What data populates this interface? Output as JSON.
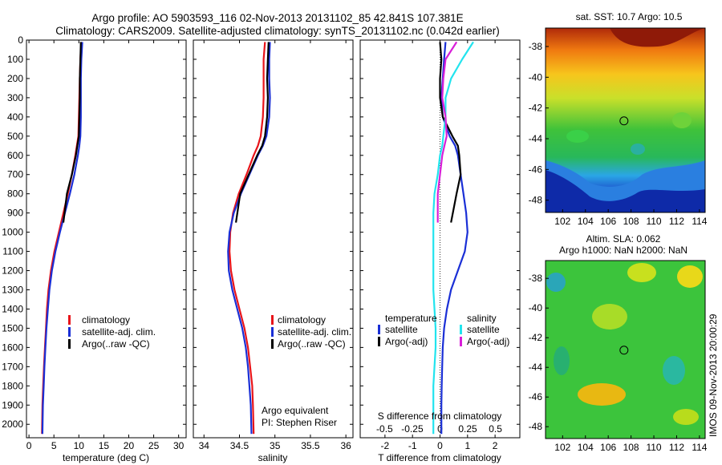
{
  "figure": {
    "title_line1": "Argo profile: AO 5903593_116 02-Nov-2013 20131102_85 42.841S 107.381E",
    "title_line2": "Climatology: CARS2009. Satellite-adjusted climatology: synTS_20131102.nc (0.042d earlier)",
    "timestamp": "IMOS 09-Nov-2013 20:00:29"
  },
  "colors": {
    "climatology": "#e8141a",
    "satellite": "#1a2fd6",
    "argo": "#000000",
    "salinity_satellite": "#22e4ee",
    "salinity_argo": "#d81ed8"
  },
  "chart_data": [
    {
      "type": "line",
      "id": "temperature",
      "xlabel": "temperature (deg C)",
      "xlim": [
        -0.5,
        31.5
      ],
      "xticks": [
        0,
        5,
        10,
        15,
        20,
        25,
        30
      ],
      "ylim": [
        0,
        2070
      ],
      "yticks": [
        0,
        100,
        200,
        300,
        400,
        500,
        600,
        700,
        800,
        900,
        1000,
        1100,
        1200,
        1300,
        1400,
        1500,
        1600,
        1700,
        1800,
        1900,
        2000
      ],
      "legend": [
        "climatology",
        "satellite-adj. clim.",
        "Argo(..raw -QC)"
      ],
      "series": [
        {
          "name": "climatology",
          "color": "#e8141a",
          "x": [
            10.5,
            10.3,
            10.2,
            10.1,
            10.0,
            9.9,
            9.6,
            9.3,
            8.6,
            7.8,
            6.9,
            6.0,
            5.1,
            4.4,
            3.9,
            3.6,
            3.4,
            3.2,
            3.0,
            2.85,
            2.7,
            2.6
          ],
          "y": [
            10,
            100,
            200,
            300,
            400,
            500,
            550,
            600,
            700,
            800,
            900,
            1000,
            1100,
            1200,
            1300,
            1400,
            1500,
            1600,
            1700,
            1800,
            1900,
            2050
          ]
        },
        {
          "name": "satellite-adj. clim.",
          "color": "#1a2fd6",
          "x": [
            10.7,
            10.5,
            10.4,
            10.4,
            10.4,
            10.3,
            10.1,
            9.8,
            9.1,
            8.2,
            7.2,
            6.2,
            5.3,
            4.6,
            4.1,
            3.8,
            3.5,
            3.3,
            3.1,
            2.95,
            2.8,
            2.7
          ],
          "y": [
            10,
            100,
            200,
            300,
            400,
            500,
            550,
            600,
            700,
            800,
            900,
            1000,
            1100,
            1200,
            1300,
            1400,
            1500,
            1600,
            1700,
            1800,
            1900,
            2050
          ]
        },
        {
          "name": "Argo(..raw -QC)",
          "color": "#000000",
          "x": [
            10.4,
            10.3,
            10.2,
            10.2,
            10.1,
            10.0,
            9.7,
            9.4,
            8.6,
            7.6,
            6.9
          ],
          "y": [
            10,
            100,
            200,
            300,
            400,
            500,
            550,
            600,
            700,
            800,
            950
          ]
        }
      ]
    },
    {
      "type": "line",
      "id": "salinity",
      "xlabel": "salinity",
      "xlim": [
        33.85,
        36.1
      ],
      "xticks": [
        34,
        34.5,
        35,
        35.5,
        36
      ],
      "ylim": [
        0,
        2070
      ],
      "legend": [
        "climatology",
        "satellite-adj. clim.",
        "Argo(..raw -QC)"
      ],
      "note_line1": "Argo equivalent",
      "note_line2": "PI: Stephen Riser",
      "series": [
        {
          "name": "climatology",
          "color": "#e8141a",
          "x": [
            34.86,
            34.84,
            34.84,
            34.84,
            34.83,
            34.8,
            34.76,
            34.7,
            34.6,
            34.49,
            34.41,
            34.37,
            34.36,
            34.38,
            34.43,
            34.5,
            34.57,
            34.62,
            34.65,
            34.68,
            34.69,
            34.7
          ],
          "y": [
            10,
            100,
            200,
            300,
            400,
            500,
            550,
            600,
            700,
            800,
            900,
            1000,
            1100,
            1200,
            1300,
            1400,
            1500,
            1600,
            1700,
            1800,
            1900,
            2050
          ]
        },
        {
          "name": "satellite-adj. clim.",
          "color": "#1a2fd6",
          "x": [
            34.93,
            34.92,
            34.92,
            34.93,
            34.92,
            34.88,
            34.83,
            34.76,
            34.64,
            34.52,
            34.42,
            34.36,
            34.34,
            34.35,
            34.4,
            34.47,
            34.54,
            34.59,
            34.62,
            34.64,
            34.66,
            34.67
          ],
          "y": [
            10,
            100,
            200,
            300,
            400,
            500,
            550,
            600,
            700,
            800,
            900,
            1000,
            1100,
            1200,
            1300,
            1400,
            1500,
            1600,
            1700,
            1800,
            1900,
            2050
          ]
        },
        {
          "name": "Argo(..raw -QC)",
          "color": "#000000",
          "x": [
            34.91,
            34.9,
            34.89,
            34.9,
            34.89,
            34.86,
            34.82,
            34.75,
            34.63,
            34.51,
            34.45
          ],
          "y": [
            10,
            100,
            200,
            300,
            400,
            500,
            550,
            600,
            700,
            800,
            950
          ]
        }
      ]
    },
    {
      "type": "line",
      "id": "difference",
      "xlabel": "T difference from climatology",
      "xlabel_top": "S difference from climatology",
      "xlim": [
        -2.9,
        2.9
      ],
      "xticks": [
        -2,
        -1,
        0,
        1,
        2
      ],
      "xticklabels": [
        "-2",
        "-1",
        "0",
        "1",
        "2"
      ],
      "xticks_top": [
        -0.5,
        -0.25,
        0,
        0.25,
        0.5
      ],
      "ylim": [
        0,
        2070
      ],
      "legend_temperature": {
        "heading": "temperature",
        "items": [
          "satellite",
          "Argo(-adj)"
        ]
      },
      "legend_salinity": {
        "heading": "salinity",
        "items": [
          "satellite",
          "Argo(-adj)"
        ]
      },
      "series": [
        {
          "name": "temperature satellite",
          "color": "#1a2fd6",
          "x": [
            0.2,
            0.15,
            0.1,
            0.05,
            0.1,
            0.35,
            0.55,
            0.65,
            0.75,
            0.85,
            0.95,
            1.0,
            0.9,
            0.65,
            0.4,
            0.25,
            0.15,
            0.1,
            0.08,
            0.06,
            0.05,
            0.05
          ],
          "y": [
            10,
            100,
            200,
            300,
            400,
            500,
            550,
            600,
            700,
            800,
            900,
            1000,
            1100,
            1200,
            1300,
            1400,
            1500,
            1600,
            1700,
            1800,
            1900,
            2050
          ]
        },
        {
          "name": "temperature Argo(-adj)",
          "color": "#000000",
          "x": [
            0.0,
            0.05,
            0.0,
            0.0,
            0.1,
            0.45,
            0.65,
            0.7,
            0.75,
            0.6,
            0.4
          ],
          "y": [
            10,
            100,
            200,
            300,
            400,
            500,
            550,
            600,
            700,
            800,
            950
          ]
        },
        {
          "name": "salinity satellite",
          "color": "#22e4ee",
          "x": [
            0.3,
            0.2,
            0.1,
            0.05,
            0.05,
            0.03,
            0.02,
            0.0,
            -0.02,
            -0.05,
            -0.06,
            -0.06,
            -0.06,
            -0.06,
            -0.06,
            -0.05,
            -0.04,
            -0.04,
            -0.05,
            -0.06,
            -0.06,
            -0.06
          ],
          "y": [
            10,
            100,
            200,
            300,
            400,
            500,
            550,
            600,
            700,
            800,
            900,
            1000,
            1100,
            1200,
            1300,
            1400,
            1500,
            1600,
            1700,
            1800,
            1900,
            2050
          ]
        },
        {
          "name": "salinity Argo(-adj)",
          "color": "#d81ed8",
          "x": [
            0.15,
            0.05,
            0.03,
            0.02,
            0.05,
            0.06,
            0.04,
            0.02,
            0.0,
            -0.02,
            -0.02
          ],
          "y": [
            10,
            100,
            200,
            300,
            400,
            500,
            550,
            600,
            700,
            800,
            950
          ]
        }
      ]
    },
    {
      "type": "heatmap",
      "id": "sst-map",
      "title": "sat. SST: 10.7 Argo: 10.5",
      "xlim": [
        100.5,
        114.5
      ],
      "ylim": [
        -48.8,
        -36.8
      ],
      "xticks": [
        102,
        104,
        106,
        108,
        110,
        112,
        114
      ],
      "yticks": [
        -38,
        -40,
        -42,
        -44,
        -46,
        -48
      ],
      "marker": {
        "lon": 107.381,
        "lat": -42.841
      }
    },
    {
      "type": "heatmap",
      "id": "sla-map",
      "title_line1": "Altim. SLA: 0.062",
      "title_line2": "Argo h1000: NaN h2000: NaN",
      "xlim": [
        100.5,
        114.5
      ],
      "ylim": [
        -48.8,
        -36.8
      ],
      "xticks": [
        102,
        104,
        106,
        108,
        110,
        112,
        114
      ],
      "yticks": [
        -38,
        -40,
        -42,
        -44,
        -46,
        -48
      ],
      "marker": {
        "lon": 107.381,
        "lat": -42.841
      }
    }
  ]
}
